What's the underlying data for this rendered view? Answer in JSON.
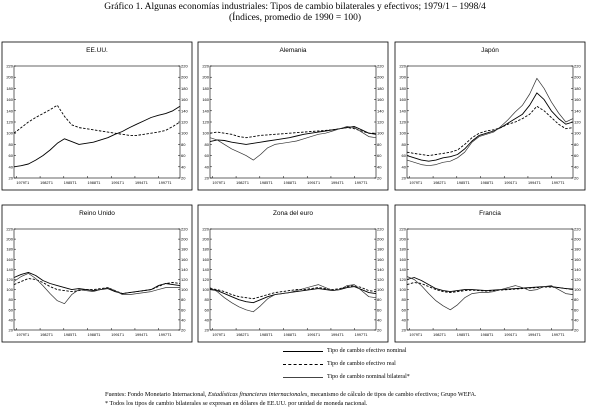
{
  "title": "Gráfico 1. Algunas economías industriales: Tipos de cambio bilaterales y efectivos; 1979/1 – 1998/4",
  "subtitle": "(Índices, promedio de 1990 = 100)",
  "legend": {
    "items": [
      {
        "label": "Tipo de cambio efectivo nominal",
        "style": "solid"
      },
      {
        "label": "Tipo de cambio efectivo real",
        "style": "dashed"
      },
      {
        "label": "Tipo de cambio nominal bilateral*",
        "style": "thin"
      }
    ]
  },
  "footer": {
    "line1_prefix": "Fuentes: Fondo Monetario Internacional, ",
    "line1_italic": "Estadísticas financieras internacionales",
    "line1_suffix": ", mecanismo de cálculo de tipos de cambio efectivos; Grupo WEFA.",
    "line2": "* Todos los tipos de cambio bilaterales se expresan en dólares de EE.UU. por unidad de moneda nacional."
  },
  "chart_data": [
    {
      "type": "line",
      "title": "EE.UU.",
      "x_tick_labels": [
        "1979T1",
        "1982T1",
        "1985T1",
        "1988T1",
        "1991T1",
        "1994T1",
        "1997T1"
      ],
      "ylim": [
        20,
        220
      ],
      "y_ticks": [
        20,
        40,
        60,
        80,
        100,
        120,
        140,
        160,
        180,
        200,
        220
      ],
      "series": [
        {
          "style": "solid",
          "values": [
            40,
            42,
            45,
            52,
            60,
            70,
            82,
            90,
            85,
            80,
            82,
            84,
            88,
            92,
            98,
            103,
            110,
            116,
            122,
            128,
            132,
            135,
            140,
            148
          ]
        },
        {
          "style": "dashed",
          "values": [
            100,
            110,
            120,
            128,
            135,
            142,
            150,
            130,
            115,
            110,
            108,
            106,
            104,
            102,
            100,
            98,
            96,
            96,
            98,
            100,
            102,
            105,
            112,
            120
          ]
        }
      ]
    },
    {
      "type": "line",
      "title": "Alemania",
      "x_tick_labels": [
        "1979T1",
        "1982T1",
        "1985T1",
        "1988T1",
        "1991T1",
        "1994T1",
        "1997T1"
      ],
      "ylim": [
        20,
        220
      ],
      "y_ticks": [
        20,
        40,
        60,
        80,
        100,
        120,
        140,
        160,
        180,
        200,
        220
      ],
      "series": [
        {
          "style": "solid",
          "values": [
            85,
            88,
            87,
            84,
            82,
            80,
            82,
            84,
            86,
            88,
            90,
            92,
            95,
            98,
            100,
            102,
            104,
            106,
            108,
            110,
            112,
            106,
            100,
            98
          ]
        },
        {
          "style": "dashed",
          "values": [
            100,
            102,
            100,
            98,
            94,
            92,
            94,
            96,
            97,
            98,
            99,
            100,
            101,
            102,
            103,
            104,
            105,
            106,
            108,
            110,
            108,
            104,
            100,
            100
          ]
        },
        {
          "style": "thin",
          "values": [
            92,
            88,
            80,
            72,
            66,
            60,
            52,
            62,
            74,
            80,
            82,
            84,
            86,
            90,
            94,
            98,
            100,
            104,
            108,
            112,
            110,
            102,
            94,
            92
          ]
        }
      ]
    },
    {
      "type": "line",
      "title": "Japón",
      "x_tick_labels": [
        "1979T1",
        "1982T1",
        "1985T1",
        "1988T1",
        "1991T1",
        "1994T1",
        "1997T1"
      ],
      "ylim": [
        20,
        220
      ],
      "y_ticks": [
        20,
        40,
        60,
        80,
        100,
        120,
        140,
        160,
        180,
        200,
        220
      ],
      "series": [
        {
          "style": "solid",
          "values": [
            60,
            56,
            52,
            50,
            52,
            56,
            58,
            62,
            72,
            86,
            96,
            100,
            104,
            110,
            118,
            126,
            134,
            150,
            172,
            160,
            140,
            126,
            116,
            120
          ]
        },
        {
          "style": "dashed",
          "values": [
            66,
            64,
            62,
            60,
            62,
            64,
            66,
            70,
            80,
            92,
            100,
            104,
            106,
            110,
            116,
            120,
            126,
            134,
            148,
            140,
            128,
            116,
            108,
            110
          ]
        },
        {
          "style": "thin",
          "values": [
            52,
            48,
            44,
            42,
            44,
            48,
            50,
            56,
            66,
            84,
            94,
            98,
            102,
            112,
            124,
            138,
            150,
            170,
            198,
            180,
            156,
            136,
            120,
            126
          ]
        }
      ]
    },
    {
      "type": "line",
      "title": "Reino Unido",
      "x_tick_labels": [
        "1979T1",
        "1982T1",
        "1985T1",
        "1988T1",
        "1991T1",
        "1994T1",
        "1997T1"
      ],
      "ylim": [
        20,
        220
      ],
      "y_ticks": [
        20,
        40,
        60,
        80,
        100,
        120,
        140,
        160,
        180,
        200,
        220
      ],
      "series": [
        {
          "style": "solid",
          "values": [
            124,
            130,
            134,
            128,
            118,
            112,
            108,
            104,
            100,
            102,
            100,
            98,
            100,
            102,
            96,
            92,
            94,
            96,
            98,
            100,
            108,
            112,
            110,
            108
          ]
        },
        {
          "style": "dashed",
          "values": [
            110,
            116,
            122,
            120,
            114,
            106,
            100,
            98,
            96,
            98,
            100,
            100,
            102,
            104,
            98,
            92,
            94,
            96,
            98,
            100,
            106,
            112,
            114,
            112
          ]
        },
        {
          "style": "thin",
          "values": [
            116,
            126,
            132,
            122,
            108,
            92,
            78,
            72,
            90,
            100,
            98,
            96,
            100,
            104,
            98,
            90,
            90,
            92,
            94,
            96,
            100,
            104,
            104,
            104
          ]
        }
      ]
    },
    {
      "type": "line",
      "title": "Zona del euro",
      "x_tick_labels": [
        "1979T1",
        "1982T1",
        "1985T1",
        "1988T1",
        "1991T1",
        "1994T1",
        "1997T1"
      ],
      "ylim": [
        20,
        220
      ],
      "y_ticks": [
        20,
        40,
        60,
        80,
        100,
        120,
        140,
        160,
        180,
        200,
        220
      ],
      "series": [
        {
          "style": "solid",
          "values": [
            100,
            98,
            92,
            86,
            80,
            76,
            74,
            80,
            86,
            90,
            92,
            94,
            96,
            98,
            100,
            102,
            100,
            98,
            100,
            104,
            106,
            100,
            94,
            92
          ]
        },
        {
          "style": "dashed",
          "values": [
            102,
            100,
            96,
            90,
            86,
            84,
            82,
            86,
            90,
            94,
            96,
            98,
            100,
            100,
            102,
            104,
            102,
            100,
            102,
            106,
            108,
            104,
            98,
            96
          ]
        },
        {
          "style": "thin",
          "values": [
            104,
            96,
            84,
            74,
            66,
            60,
            56,
            68,
            82,
            90,
            92,
            94,
            98,
            102,
            106,
            110,
            104,
            98,
            100,
            108,
            110,
            98,
            86,
            84
          ]
        }
      ]
    },
    {
      "type": "line",
      "title": "Francia",
      "x_tick_labels": [
        "1979T1",
        "1982T1",
        "1985T1",
        "1988T1",
        "1991T1",
        "1994T1",
        "1997T1"
      ],
      "ylim": [
        20,
        220
      ],
      "y_ticks": [
        20,
        40,
        60,
        80,
        100,
        120,
        140,
        160,
        180,
        200,
        220
      ],
      "series": [
        {
          "style": "solid",
          "values": [
            120,
            124,
            118,
            110,
            102,
            98,
            96,
            98,
            100,
            100,
            99,
            98,
            99,
            100,
            101,
            102,
            103,
            104,
            105,
            106,
            106,
            104,
            102,
            101
          ]
        },
        {
          "style": "dashed",
          "values": [
            110,
            114,
            112,
            106,
            100,
            96,
            94,
            96,
            98,
            99,
            98,
            97,
            98,
            99,
            100,
            101,
            102,
            103,
            104,
            105,
            105,
            104,
            102,
            100
          ]
        },
        {
          "style": "thin",
          "values": [
            126,
            120,
            108,
            92,
            78,
            68,
            60,
            70,
            84,
            92,
            94,
            94,
            96,
            100,
            104,
            108,
            104,
            98,
            100,
            106,
            108,
            100,
            92,
            90
          ]
        }
      ]
    }
  ]
}
